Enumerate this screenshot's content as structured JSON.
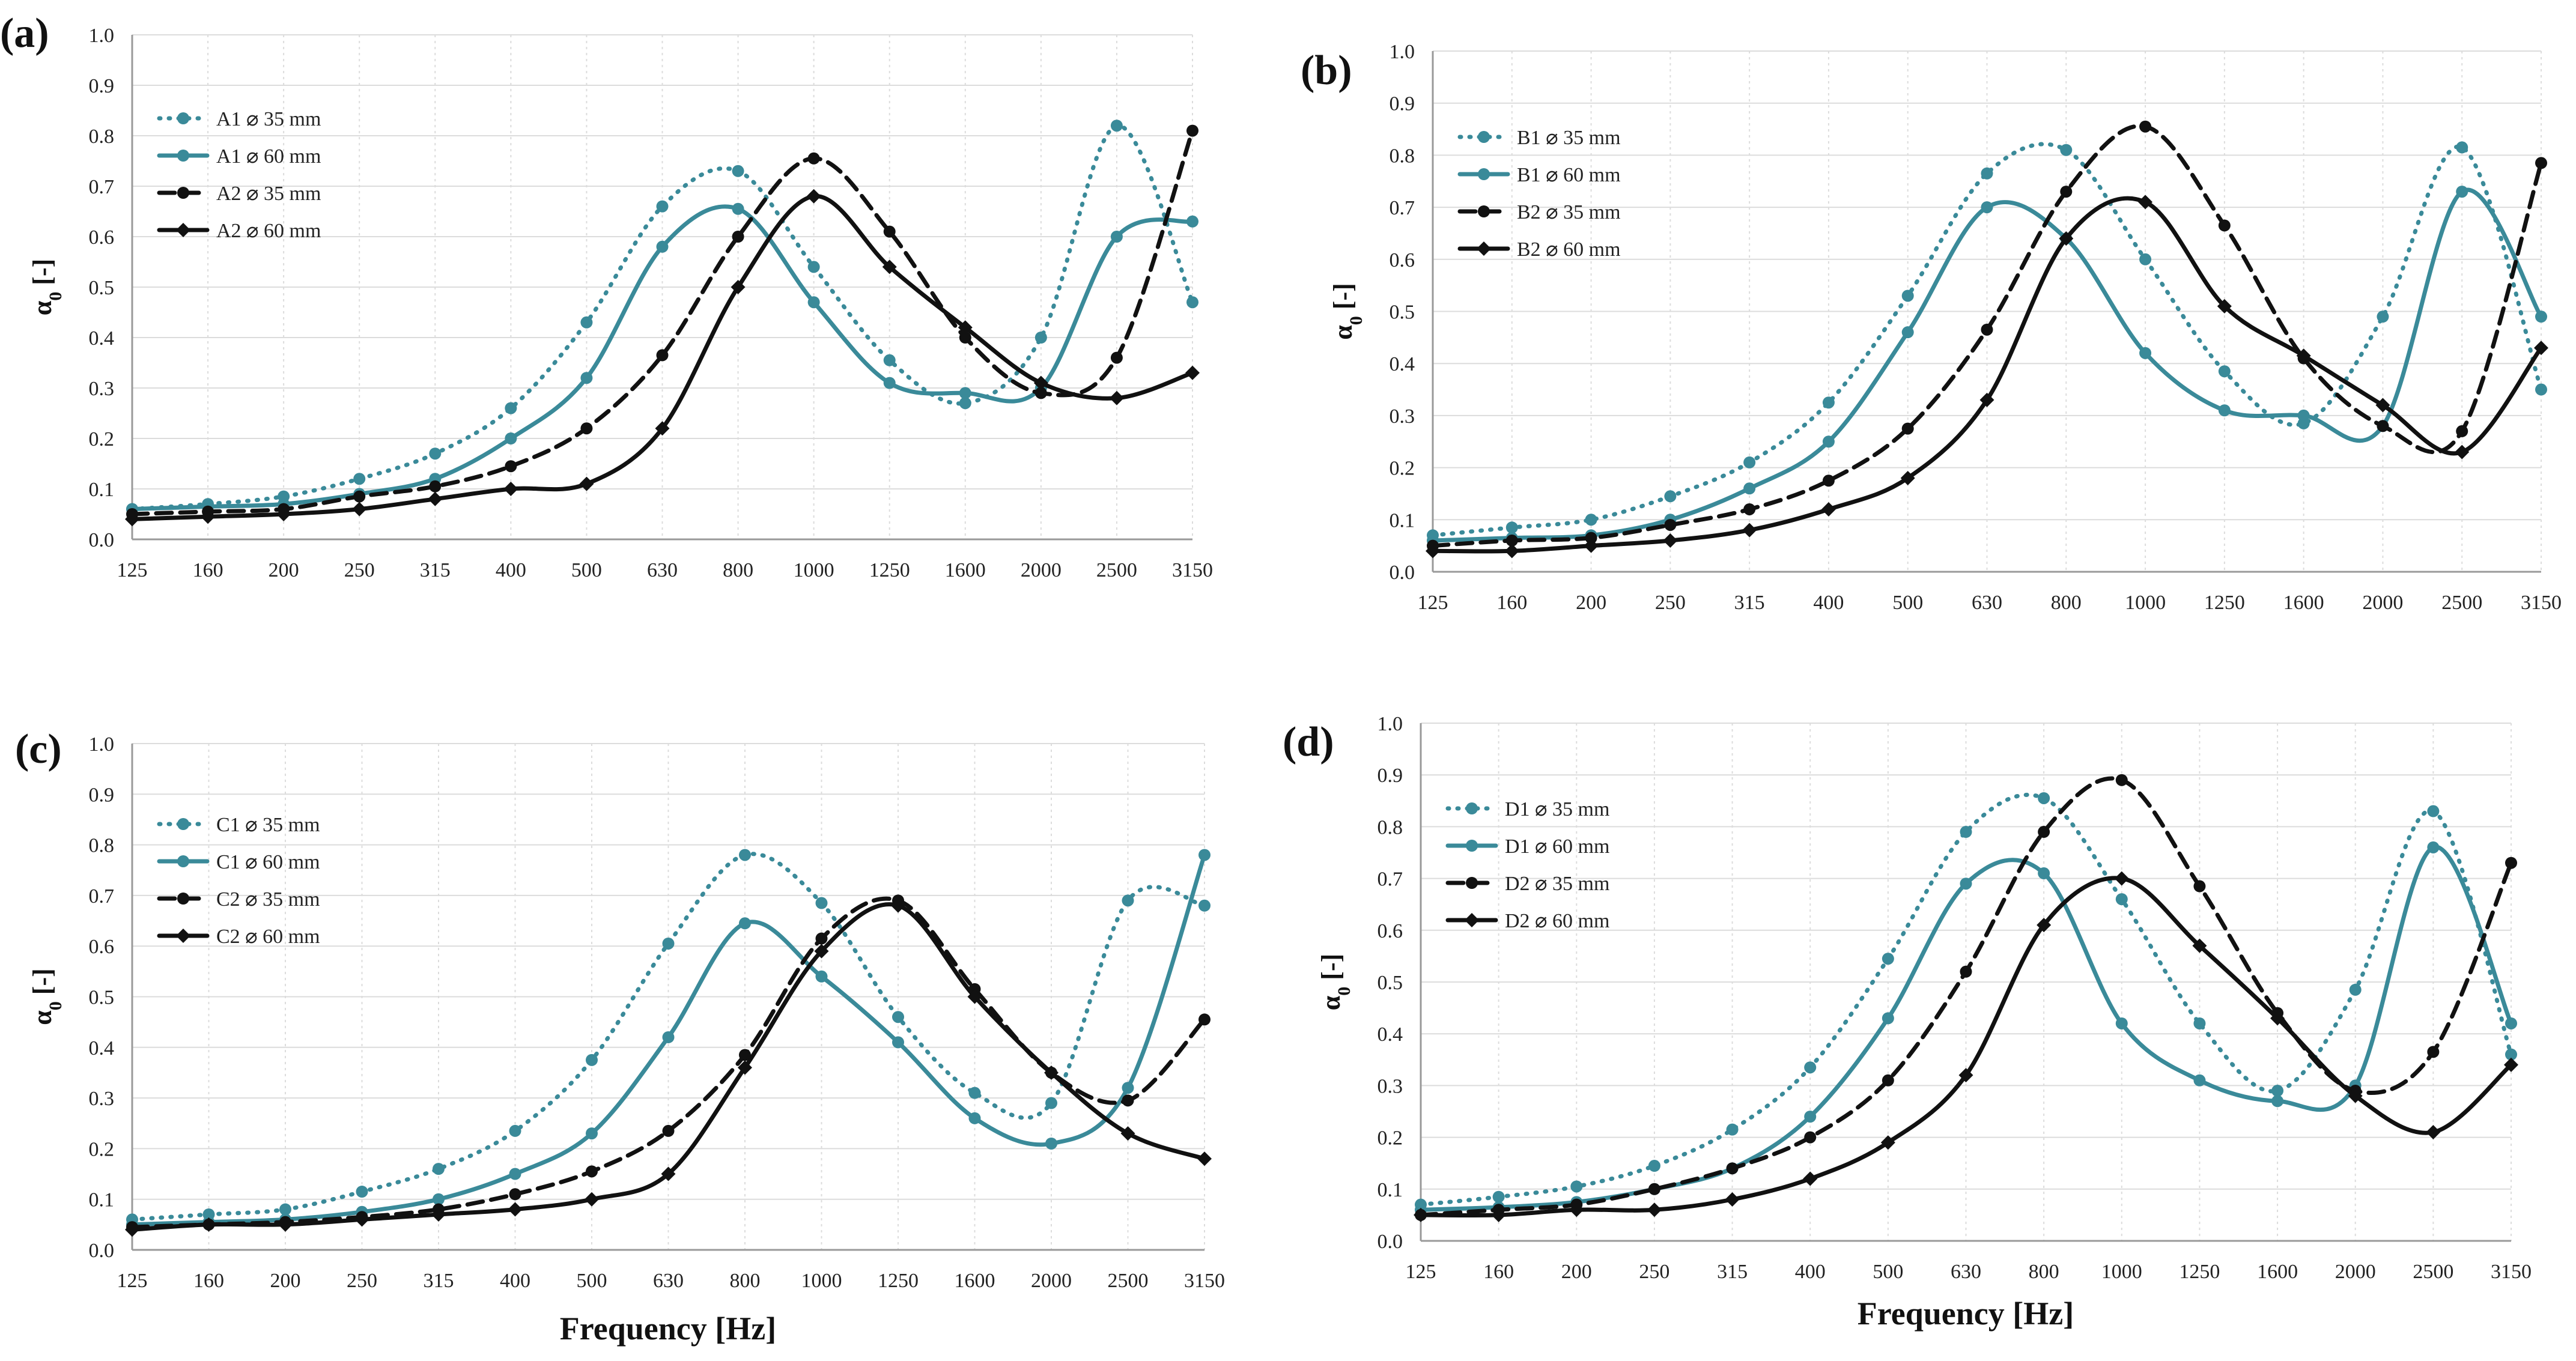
{
  "colors": {
    "teal": "#3a8a99",
    "black": "#111111",
    "grid": "#dcdcdc",
    "axis": "#999999"
  },
  "chart_data": [
    {
      "type": "line",
      "panel_label": "(a)",
      "ylabel_main": "α",
      "ylabel_sub": "0",
      "ylabel_rest": " [-]",
      "xlabel": "",
      "categories": [
        "125",
        "160",
        "200",
        "250",
        "315",
        "400",
        "500",
        "630",
        "800",
        "1000",
        "1250",
        "1600",
        "2000",
        "2500",
        "3150"
      ],
      "ylim": [
        0,
        1.0
      ],
      "yticks": [
        "0.0",
        "0.1",
        "0.2",
        "0.3",
        "0.4",
        "0.5",
        "0.6",
        "0.7",
        "0.8",
        "0.9",
        "1.0"
      ],
      "grid": true,
      "legend_position": "top-left",
      "series": [
        {
          "name": "A1 ⌀ 35 mm",
          "color": "teal",
          "dash": "dotted",
          "marker": "circle",
          "values": [
            0.06,
            0.07,
            0.085,
            0.12,
            0.17,
            0.26,
            0.43,
            0.66,
            0.73,
            0.54,
            0.355,
            0.27,
            0.4,
            0.82,
            0.47
          ]
        },
        {
          "name": "A1 ⌀ 60 mm",
          "color": "teal",
          "dash": "solid",
          "marker": "circle",
          "values": [
            0.06,
            0.065,
            0.07,
            0.09,
            0.12,
            0.2,
            0.32,
            0.58,
            0.655,
            0.47,
            0.31,
            0.29,
            0.3,
            0.6,
            0.63
          ]
        },
        {
          "name": "A2 ⌀ 35 mm",
          "color": "black",
          "dash": "dashed",
          "marker": "circle",
          "values": [
            0.05,
            0.055,
            0.06,
            0.085,
            0.105,
            0.145,
            0.22,
            0.365,
            0.6,
            0.755,
            0.61,
            0.4,
            0.29,
            0.36,
            0.81
          ]
        },
        {
          "name": "A2 ⌀ 60 mm",
          "color": "black",
          "dash": "solid",
          "marker": "diamond",
          "values": [
            0.04,
            0.045,
            0.05,
            0.06,
            0.08,
            0.1,
            0.11,
            0.22,
            0.5,
            0.68,
            0.54,
            0.42,
            0.31,
            0.28,
            0.33
          ]
        }
      ]
    },
    {
      "type": "line",
      "panel_label": "(b)",
      "ylabel_main": "α",
      "ylabel_sub": "0",
      "ylabel_rest": " [-]",
      "xlabel": "",
      "categories": [
        "125",
        "160",
        "200",
        "250",
        "315",
        "400",
        "500",
        "630",
        "800",
        "1000",
        "1250",
        "1600",
        "2000",
        "2500",
        "3150"
      ],
      "ylim": [
        0,
        1.0
      ],
      "yticks": [
        "0.0",
        "0.1",
        "0.2",
        "0.3",
        "0.4",
        "0.5",
        "0.6",
        "0.7",
        "0.8",
        "0.9",
        "1.0"
      ],
      "grid": true,
      "legend_position": "top-left",
      "series": [
        {
          "name": "B1 ⌀ 35 mm",
          "color": "teal",
          "dash": "dotted",
          "marker": "circle",
          "values": [
            0.07,
            0.085,
            0.1,
            0.145,
            0.21,
            0.325,
            0.53,
            0.765,
            0.81,
            0.6,
            0.385,
            0.285,
            0.49,
            0.815,
            0.35
          ]
        },
        {
          "name": "B1 ⌀ 60 mm",
          "color": "teal",
          "dash": "solid",
          "marker": "circle",
          "values": [
            0.06,
            0.065,
            0.07,
            0.1,
            0.16,
            0.25,
            0.46,
            0.7,
            0.64,
            0.42,
            0.31,
            0.3,
            0.28,
            0.73,
            0.49
          ]
        },
        {
          "name": "B2 ⌀ 35 mm",
          "color": "black",
          "dash": "dashed",
          "marker": "circle",
          "values": [
            0.05,
            0.06,
            0.065,
            0.09,
            0.12,
            0.175,
            0.275,
            0.465,
            0.73,
            0.855,
            0.665,
            0.41,
            0.28,
            0.27,
            0.785
          ]
        },
        {
          "name": "B2 ⌀ 60 mm",
          "color": "black",
          "dash": "solid",
          "marker": "diamond",
          "values": [
            0.04,
            0.04,
            0.05,
            0.06,
            0.08,
            0.12,
            0.18,
            0.33,
            0.64,
            0.71,
            0.51,
            0.415,
            0.32,
            0.23,
            0.43
          ]
        }
      ]
    },
    {
      "type": "line",
      "panel_label": "(c)",
      "ylabel_main": "α",
      "ylabel_sub": "0",
      "ylabel_rest": " [-]",
      "xlabel": "Frequency [Hz]",
      "categories": [
        "125",
        "160",
        "200",
        "250",
        "315",
        "400",
        "500",
        "630",
        "800",
        "1000",
        "1250",
        "1600",
        "2000",
        "2500",
        "3150"
      ],
      "ylim": [
        0,
        1.0
      ],
      "yticks": [
        "0.0",
        "0.1",
        "0.2",
        "0.3",
        "0.4",
        "0.5",
        "0.6",
        "0.7",
        "0.8",
        "0.9",
        "1.0"
      ],
      "grid": true,
      "legend_position": "top-left",
      "series": [
        {
          "name": "C1 ⌀ 35 mm",
          "color": "teal",
          "dash": "dotted",
          "marker": "circle",
          "values": [
            0.06,
            0.07,
            0.08,
            0.115,
            0.16,
            0.235,
            0.375,
            0.605,
            0.78,
            0.685,
            0.46,
            0.31,
            0.29,
            0.69,
            0.68
          ]
        },
        {
          "name": "C1 ⌀ 60 mm",
          "color": "teal",
          "dash": "solid",
          "marker": "circle",
          "values": [
            0.05,
            0.055,
            0.06,
            0.075,
            0.1,
            0.15,
            0.23,
            0.42,
            0.645,
            0.54,
            0.41,
            0.26,
            0.21,
            0.32,
            0.78
          ]
        },
        {
          "name": "C2 ⌀ 35 mm",
          "color": "black",
          "dash": "dashed",
          "marker": "circle",
          "values": [
            0.045,
            0.05,
            0.055,
            0.065,
            0.08,
            0.11,
            0.155,
            0.235,
            0.385,
            0.615,
            0.69,
            0.515,
            0.35,
            0.295,
            0.455
          ]
        },
        {
          "name": "C2 ⌀ 60 mm",
          "color": "black",
          "dash": "solid",
          "marker": "diamond",
          "values": [
            0.04,
            0.05,
            0.05,
            0.06,
            0.07,
            0.08,
            0.1,
            0.15,
            0.36,
            0.59,
            0.68,
            0.5,
            0.35,
            0.23,
            0.18
          ]
        }
      ]
    },
    {
      "type": "line",
      "panel_label": "(d)",
      "ylabel_main": "α",
      "ylabel_sub": "0",
      "ylabel_rest": " [-]",
      "xlabel": "Frequency [Hz]",
      "categories": [
        "125",
        "160",
        "200",
        "250",
        "315",
        "400",
        "500",
        "630",
        "800",
        "1000",
        "1250",
        "1600",
        "2000",
        "2500",
        "3150"
      ],
      "ylim": [
        0,
        1.0
      ],
      "yticks": [
        "0.0",
        "0.1",
        "0.2",
        "0.3",
        "0.4",
        "0.5",
        "0.6",
        "0.7",
        "0.8",
        "0.9",
        "1.0"
      ],
      "grid": true,
      "legend_position": "top-left",
      "series": [
        {
          "name": "D1 ⌀ 35 mm",
          "color": "teal",
          "dash": "dotted",
          "marker": "circle",
          "values": [
            0.07,
            0.085,
            0.105,
            0.145,
            0.215,
            0.335,
            0.545,
            0.79,
            0.855,
            0.66,
            0.42,
            0.29,
            0.485,
            0.83,
            0.36
          ]
        },
        {
          "name": "D1 ⌀ 60 mm",
          "color": "teal",
          "dash": "solid",
          "marker": "circle",
          "values": [
            0.06,
            0.065,
            0.075,
            0.1,
            0.14,
            0.24,
            0.43,
            0.69,
            0.71,
            0.42,
            0.31,
            0.27,
            0.3,
            0.76,
            0.42
          ]
        },
        {
          "name": "D2 ⌀ 35 mm",
          "color": "black",
          "dash": "dashed",
          "marker": "circle",
          "values": [
            0.05,
            0.06,
            0.07,
            0.1,
            0.14,
            0.2,
            0.31,
            0.52,
            0.79,
            0.89,
            0.685,
            0.44,
            0.29,
            0.365,
            0.73
          ]
        },
        {
          "name": "D2 ⌀ 60 mm",
          "color": "black",
          "dash": "solid",
          "marker": "diamond",
          "values": [
            0.05,
            0.05,
            0.06,
            0.06,
            0.08,
            0.12,
            0.19,
            0.32,
            0.61,
            0.7,
            0.57,
            0.43,
            0.28,
            0.21,
            0.34
          ]
        }
      ]
    }
  ]
}
